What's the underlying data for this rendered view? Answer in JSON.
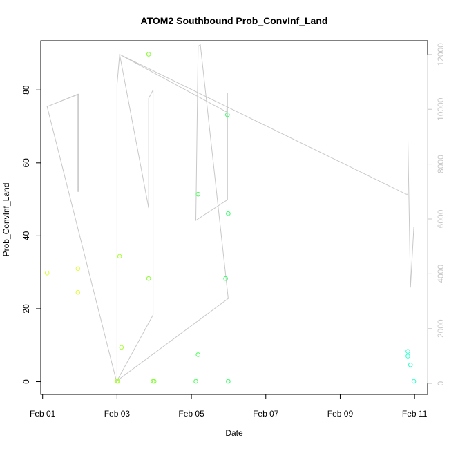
{
  "chart_data": {
    "type": "scatter",
    "title": "ATOM2 Southbound Prob_ConvInf_Land",
    "xlabel": "Date",
    "ylabel": "Prob_ConvInf_Land",
    "x_unit": "days since Feb 01",
    "xlim": [
      -0.05,
      10.35
    ],
    "ylim": [
      -3.5,
      93.5
    ],
    "x_ticks": [
      {
        "value": 0,
        "label": "Feb 01"
      },
      {
        "value": 2,
        "label": "Feb 03"
      },
      {
        "value": 4,
        "label": "Feb 05"
      },
      {
        "value": 6,
        "label": "Feb 07"
      },
      {
        "value": 8,
        "label": "Feb 09"
      },
      {
        "value": 10,
        "label": "Feb 11"
      }
    ],
    "y_ticks": [
      0,
      20,
      40,
      60,
      80
    ],
    "y2_ticks": [
      {
        "value": 0,
        "label": "0"
      },
      {
        "value": 2000,
        "label": "2000"
      },
      {
        "value": 4000,
        "label": "4000"
      },
      {
        "value": 6000,
        "label": "6000"
      },
      {
        "value": 8000,
        "label": "8000"
      },
      {
        "value": 10000,
        "label": "10000"
      },
      {
        "value": 12000,
        "label": "12000"
      }
    ],
    "y2lim": [
      -400,
      12500
    ],
    "grid": false,
    "series": [
      {
        "kind": "points",
        "points": [
          {
            "x": 0.12,
            "y": 29.8,
            "color": "#d9ff33"
          },
          {
            "x": 0.95,
            "y": 31.0,
            "color": "#dcff33"
          },
          {
            "x": 0.95,
            "y": 24.5,
            "color": "#dcff33"
          },
          {
            "x": 2.0,
            "y": 0.1,
            "color": "#aaff33"
          },
          {
            "x": 2.02,
            "y": 0.1,
            "color": "#aaff33"
          },
          {
            "x": 2.07,
            "y": 34.4,
            "color": "#a8ff33"
          },
          {
            "x": 2.12,
            "y": 9.4,
            "color": "#a8ff33"
          },
          {
            "x": 2.85,
            "y": 89.8,
            "color": "#88ff33"
          },
          {
            "x": 2.85,
            "y": 28.3,
            "color": "#88ff33"
          },
          {
            "x": 2.97,
            "y": 0.1,
            "color": "#80ff33"
          },
          {
            "x": 3.0,
            "y": 0.1,
            "color": "#80ff33"
          },
          {
            "x": 4.12,
            "y": 0.1,
            "color": "#44ff55"
          },
          {
            "x": 4.18,
            "y": 51.4,
            "color": "#44ff55"
          },
          {
            "x": 4.18,
            "y": 7.4,
            "color": "#44ff55"
          },
          {
            "x": 4.92,
            "y": 28.3,
            "color": "#33ff66"
          },
          {
            "x": 4.97,
            "y": 73.2,
            "color": "#33ff66"
          },
          {
            "x": 4.99,
            "y": 46.1,
            "color": "#33ff66"
          },
          {
            "x": 4.99,
            "y": 0.1,
            "color": "#33ff66"
          },
          {
            "x": 9.82,
            "y": 8.3,
            "color": "#33ffcc"
          },
          {
            "x": 9.82,
            "y": 7.0,
            "color": "#33ffcc"
          },
          {
            "x": 9.89,
            "y": 4.6,
            "color": "#33ffcc"
          },
          {
            "x": 9.98,
            "y": 0.1,
            "color": "#33ffcc"
          }
        ]
      },
      {
        "kind": "line",
        "axis": "right",
        "color": "#c8c8c8",
        "points": [
          {
            "x": 0.12,
            "y": 10100
          },
          {
            "x": 0.95,
            "y": 10550
          },
          {
            "x": 0.95,
            "y": 7000
          },
          {
            "x": 0.97,
            "y": 7000
          },
          {
            "x": 0.97,
            "y": 10550
          },
          {
            "x": 0.12,
            "y": 10100
          },
          {
            "x": 2.0,
            "y": 0.0
          },
          {
            "x": 2.0,
            "y": 10900
          },
          {
            "x": 2.07,
            "y": 12000
          },
          {
            "x": 4.95,
            "y": 9900
          },
          {
            "x": 4.97,
            "y": 10600
          },
          {
            "x": 4.97,
            "y": 6700
          },
          {
            "x": 4.12,
            "y": 5950
          },
          {
            "x": 4.18,
            "y": 12300
          },
          {
            "x": 4.24,
            "y": 12360
          },
          {
            "x": 4.99,
            "y": 3100
          },
          {
            "x": 2.0,
            "y": 100
          },
          {
            "x": 2.97,
            "y": 2500
          },
          {
            "x": 2.97,
            "y": 10700
          },
          {
            "x": 2.85,
            "y": 10400
          },
          {
            "x": 2.85,
            "y": 6400
          },
          {
            "x": 2.07,
            "y": 12000
          },
          {
            "x": 9.78,
            "y": 6900
          },
          {
            "x": 9.82,
            "y": 6900
          },
          {
            "x": 9.82,
            "y": 8900
          },
          {
            "x": 9.89,
            "y": 3500
          },
          {
            "x": 9.98,
            "y": 5700
          }
        ]
      }
    ]
  }
}
